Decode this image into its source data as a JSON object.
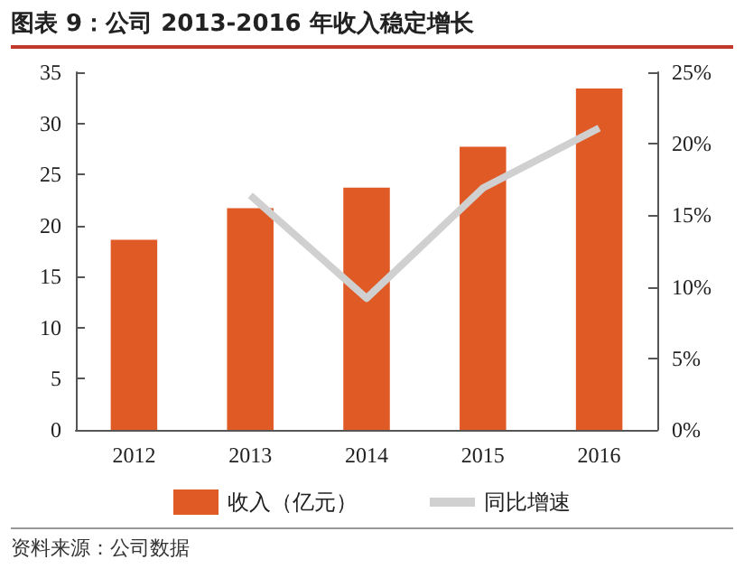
{
  "chart_data": {
    "type": "bar",
    "title": "图表 9：公司 2013-2016 年收入稳定增长",
    "annotations": [
      "资料来源：公司数据"
    ],
    "categories": [
      "2012",
      "2013",
      "2014",
      "2015",
      "2016"
    ],
    "series": [
      {
        "name": "收入（亿元）",
        "color": "#e05a26",
        "values": [
          18.6,
          21.7,
          23.7,
          27.7,
          33.4
        ]
      },
      {
        "name": "同比增速",
        "type": "line",
        "axis": "y2",
        "color": "#d0d0d0",
        "values": [
          null,
          16.4,
          9.2,
          16.9,
          21.1
        ]
      }
    ],
    "ylim": [
      0,
      35
    ],
    "yticks": [
      0,
      5,
      10,
      15,
      20,
      25,
      30,
      35
    ],
    "y2lim": [
      0,
      25
    ],
    "y2ticks": [
      {
        "value": 0,
        "label": "0%"
      },
      {
        "value": 5,
        "label": "5%"
      },
      {
        "value": 10,
        "label": "10%"
      },
      {
        "value": 15,
        "label": "15%"
      },
      {
        "value": 20,
        "label": "20%"
      },
      {
        "value": 25,
        "label": "25%"
      }
    ],
    "grid": false,
    "legend": "bottom",
    "marker": "none"
  }
}
